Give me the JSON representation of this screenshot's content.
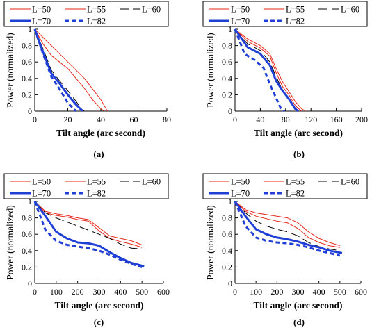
{
  "legend_items": [
    {
      "label": "L=50",
      "color": "#e8261a",
      "dash": "solid",
      "thick": false
    },
    {
      "label": "L=55",
      "color": "#e8261a",
      "dash": "solid",
      "thick": false
    },
    {
      "label": "L=60",
      "color": "#000000",
      "dash": "longdash",
      "thick": false
    },
    {
      "label": "L=70",
      "color": "#1f3fd6",
      "dash": "solid",
      "thick": true
    },
    {
      "label": "L=82",
      "color": "#1f3fd6",
      "dash": "dashed",
      "thick": true
    }
  ],
  "chart_data": [
    {
      "type": "line",
      "panel": "(a)",
      "xlabel": "Tilt angle (arc second)",
      "ylabel": "Power (normalized)",
      "xlim": [
        0,
        80
      ],
      "ylim": [
        0,
        1
      ],
      "xticks": [
        "0",
        "20",
        "40",
        "60",
        "80"
      ],
      "yticks": [
        "0",
        "0.2",
        "0.4",
        "0.6",
        "0.8",
        "1"
      ],
      "series": [
        {
          "name": "L=50",
          "x": [
            0,
            10,
            20,
            30,
            40,
            44
          ],
          "y": [
            1,
            0.8,
            0.6,
            0.4,
            0.14,
            0
          ]
        },
        {
          "name": "L=55",
          "x": [
            0,
            5,
            10,
            15,
            20,
            25,
            30,
            35,
            40,
            42
          ],
          "y": [
            1,
            0.82,
            0.68,
            0.6,
            0.52,
            0.4,
            0.28,
            0.14,
            0.03,
            0
          ]
        },
        {
          "name": "L=60",
          "x": [
            0,
            5,
            10,
            15,
            20,
            25,
            28,
            30
          ],
          "y": [
            1,
            0.76,
            0.5,
            0.37,
            0.25,
            0.12,
            0.03,
            0
          ]
        },
        {
          "name": "L=70",
          "x": [
            0,
            5,
            10,
            15,
            20,
            25,
            29
          ],
          "y": [
            1,
            0.72,
            0.46,
            0.34,
            0.2,
            0.08,
            0
          ]
        },
        {
          "name": "L=82",
          "x": [
            0,
            5,
            10,
            15,
            20,
            25
          ],
          "y": [
            1,
            0.7,
            0.42,
            0.27,
            0.1,
            0
          ]
        }
      ]
    },
    {
      "type": "line",
      "panel": "(b)",
      "xlabel": "Tilt angle (arc second)",
      "ylabel": "Power (normalized)",
      "xlim": [
        0,
        200
      ],
      "ylim": [
        0,
        1
      ],
      "xticks": [
        "0",
        "40",
        "80",
        "120",
        "160",
        "200"
      ],
      "yticks": [
        "0",
        "0.2",
        "0.4",
        "0.6",
        "0.8",
        "1"
      ],
      "series": [
        {
          "name": "L=50",
          "x": [
            0,
            20,
            40,
            55,
            65,
            75,
            85,
            95,
            105,
            112
          ],
          "y": [
            1,
            0.88,
            0.8,
            0.7,
            0.52,
            0.36,
            0.24,
            0.12,
            0.03,
            0
          ]
        },
        {
          "name": "L=55",
          "x": [
            0,
            20,
            40,
            55,
            65,
            75,
            85,
            95,
            105
          ],
          "y": [
            1,
            0.85,
            0.77,
            0.67,
            0.47,
            0.3,
            0.2,
            0.07,
            0
          ]
        },
        {
          "name": "L=60",
          "x": [
            0,
            20,
            40,
            55,
            65,
            75,
            85,
            95,
            100
          ],
          "y": [
            1,
            0.82,
            0.74,
            0.6,
            0.42,
            0.26,
            0.15,
            0.03,
            0
          ]
        },
        {
          "name": "L=70",
          "x": [
            0,
            20,
            40,
            55,
            65,
            75,
            85,
            95,
            100
          ],
          "y": [
            1,
            0.78,
            0.7,
            0.56,
            0.37,
            0.25,
            0.15,
            0.03,
            0
          ]
        },
        {
          "name": "L=82",
          "x": [
            0,
            15,
            30,
            45,
            55,
            65,
            72,
            78
          ],
          "y": [
            1,
            0.7,
            0.63,
            0.53,
            0.33,
            0.16,
            0.04,
            0
          ]
        }
      ]
    },
    {
      "type": "line",
      "panel": "(c)",
      "xlabel": "Tilt angle (arc second)",
      "ylabel": "Power (normalized)",
      "xlim": [
        0,
        600
      ],
      "ylim": [
        0,
        1
      ],
      "xticks": [
        "0",
        "100",
        "200",
        "300",
        "400",
        "500",
        "600"
      ],
      "yticks": [
        "0",
        "0.2",
        "0.4",
        "0.6",
        "0.8",
        "1"
      ],
      "series": [
        {
          "name": "L=50",
          "x": [
            0,
            50,
            100,
            150,
            200,
            250,
            300,
            350,
            400,
            450,
            500
          ],
          "y": [
            1,
            0.88,
            0.85,
            0.83,
            0.8,
            0.78,
            0.68,
            0.58,
            0.55,
            0.52,
            0.47
          ]
        },
        {
          "name": "L=55",
          "x": [
            0,
            50,
            100,
            150,
            200,
            250,
            300,
            350,
            400,
            450,
            500
          ],
          "y": [
            1,
            0.86,
            0.83,
            0.81,
            0.78,
            0.76,
            0.64,
            0.55,
            0.51,
            0.48,
            0.44
          ]
        },
        {
          "name": "L=60",
          "x": [
            0,
            50,
            100,
            150,
            200,
            250,
            300,
            350,
            400,
            450,
            500
          ],
          "y": [
            1,
            0.86,
            0.8,
            0.75,
            0.7,
            0.65,
            0.6,
            0.55,
            0.48,
            0.43,
            0.42
          ]
        },
        {
          "name": "L=70",
          "x": [
            0,
            50,
            100,
            150,
            200,
            250,
            300,
            350,
            400,
            450,
            510
          ],
          "y": [
            1,
            0.82,
            0.63,
            0.55,
            0.5,
            0.49,
            0.46,
            0.38,
            0.31,
            0.25,
            0.21
          ]
        },
        {
          "name": "L=82",
          "x": [
            0,
            50,
            100,
            150,
            200,
            250,
            300,
            350,
            400,
            450,
            500
          ],
          "y": [
            1,
            0.65,
            0.52,
            0.47,
            0.45,
            0.43,
            0.4,
            0.35,
            0.29,
            0.24,
            0.2
          ]
        }
      ]
    },
    {
      "type": "line",
      "panel": "(d)",
      "xlabel": "Tilt angle (arc second)",
      "ylabel": "Power (normalized)",
      "xlim": [
        0,
        600
      ],
      "ylim": [
        0,
        1
      ],
      "xticks": [
        "0",
        "100",
        "200",
        "300",
        "400",
        "500",
        "600"
      ],
      "yticks": [
        "0",
        "0.2",
        "0.4",
        "0.6",
        "0.8",
        "1"
      ],
      "series": [
        {
          "name": "L=50",
          "x": [
            0,
            50,
            100,
            150,
            200,
            250,
            300,
            350,
            400,
            450,
            500
          ],
          "y": [
            1,
            0.9,
            0.86,
            0.84,
            0.82,
            0.8,
            0.74,
            0.63,
            0.55,
            0.5,
            0.46
          ]
        },
        {
          "name": "L=55",
          "x": [
            0,
            50,
            100,
            150,
            200,
            250,
            300,
            350,
            400,
            450,
            500
          ],
          "y": [
            1,
            0.88,
            0.82,
            0.79,
            0.76,
            0.74,
            0.67,
            0.56,
            0.5,
            0.46,
            0.44
          ]
        },
        {
          "name": "L=60",
          "x": [
            0,
            50,
            100,
            150,
            200,
            250,
            300,
            350,
            400,
            450,
            500
          ],
          "y": [
            1,
            0.86,
            0.76,
            0.7,
            0.66,
            0.63,
            0.58,
            0.5,
            0.45,
            0.42,
            0.4
          ]
        },
        {
          "name": "L=70",
          "x": [
            0,
            50,
            100,
            150,
            200,
            250,
            300,
            350,
            400,
            450,
            510
          ],
          "y": [
            1,
            0.82,
            0.66,
            0.6,
            0.56,
            0.54,
            0.51,
            0.47,
            0.44,
            0.4,
            0.37
          ]
        },
        {
          "name": "L=82",
          "x": [
            0,
            50,
            100,
            150,
            200,
            250,
            300,
            350,
            400,
            450,
            500
          ],
          "y": [
            1,
            0.7,
            0.56,
            0.52,
            0.5,
            0.49,
            0.47,
            0.44,
            0.4,
            0.37,
            0.34
          ]
        }
      ]
    }
  ]
}
